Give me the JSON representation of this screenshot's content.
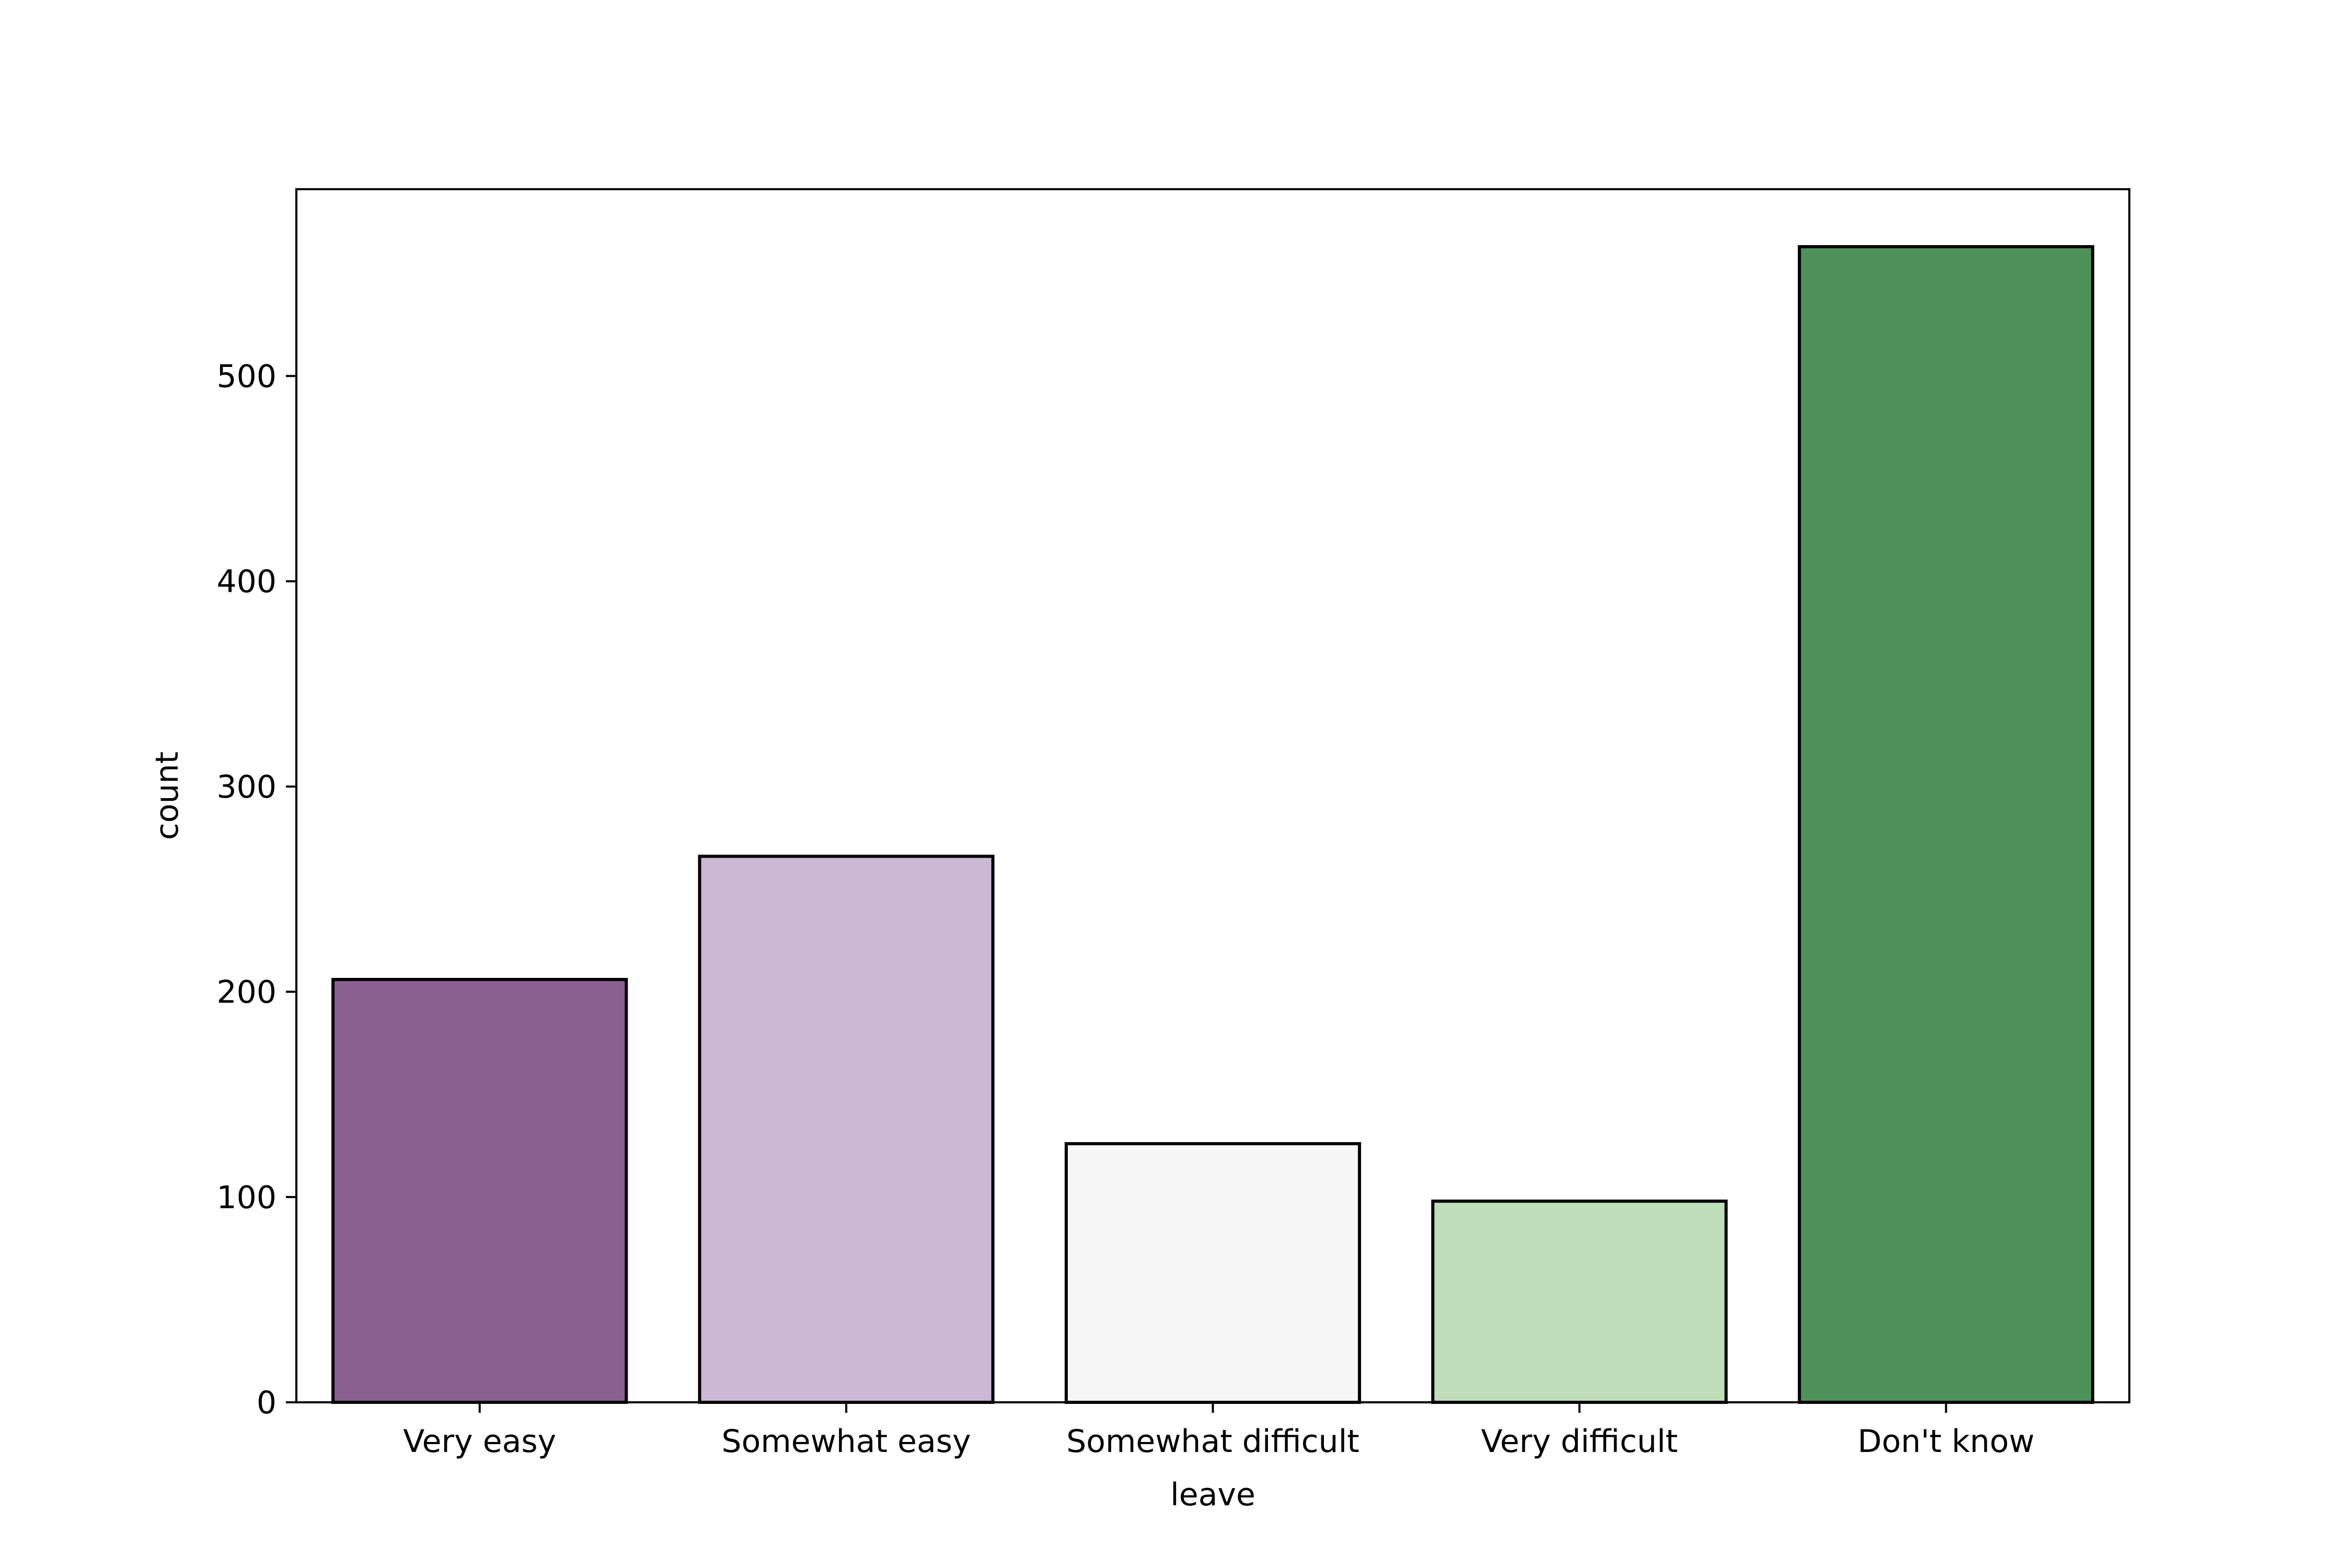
{
  "chart_data": {
    "type": "bar",
    "categories": [
      "Very easy",
      "Somewhat easy",
      "Somewhat difficult",
      "Very difficult",
      "Don't know"
    ],
    "values": [
      206,
      266,
      126,
      98,
      563
    ],
    "colors": [
      "#8a6091",
      "#ccb8d4",
      "#f6f6f6",
      "#bedeb9",
      "#4f9259"
    ],
    "xlabel": "leave",
    "ylabel": "count",
    "ylim": [
      0,
      591
    ],
    "yticks": [
      0,
      100,
      200,
      300,
      400,
      500
    ],
    "grid": false,
    "legend": "none"
  }
}
